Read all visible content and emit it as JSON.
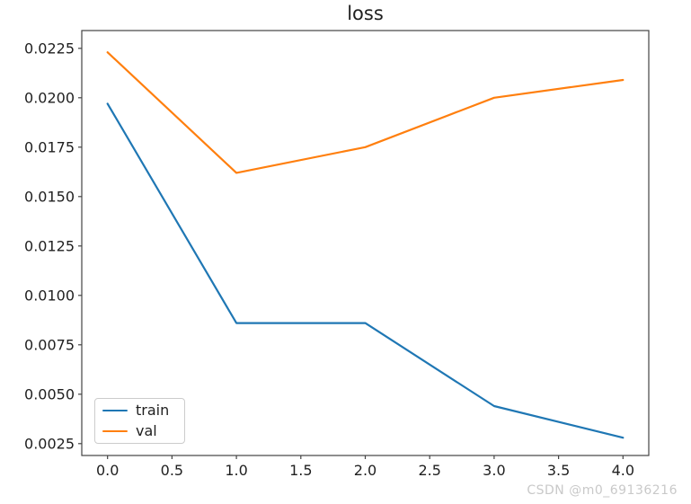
{
  "watermark": "CSDN @m0_69136216",
  "chart_data": {
    "type": "line",
    "title": "loss",
    "xlabel": "",
    "ylabel": "",
    "x": [
      0,
      1,
      2,
      3,
      4
    ],
    "series": [
      {
        "name": "train",
        "color": "#1f77b4",
        "values": [
          0.0197,
          0.0086,
          0.0086,
          0.0044,
          0.0028
        ]
      },
      {
        "name": "val",
        "color": "#ff7f0e",
        "values": [
          0.0223,
          0.0162,
          0.0175,
          0.02,
          0.0209
        ]
      }
    ],
    "xlim": [
      -0.2,
      4.2
    ],
    "ylim": [
      0.0019,
      0.0234
    ],
    "xticks": [
      0.0,
      0.5,
      1.0,
      1.5,
      2.0,
      2.5,
      3.0,
      3.5,
      4.0
    ],
    "xtick_labels": [
      "0.0",
      "0.5",
      "1.0",
      "1.5",
      "2.0",
      "2.5",
      "3.0",
      "3.5",
      "4.0"
    ],
    "yticks": [
      0.0025,
      0.005,
      0.0075,
      0.01,
      0.0125,
      0.015,
      0.0175,
      0.02,
      0.0225
    ],
    "ytick_labels": [
      "0.0025",
      "0.0050",
      "0.0075",
      "0.0100",
      "0.0125",
      "0.0150",
      "0.0175",
      "0.0200",
      "0.0225"
    ],
    "grid": false,
    "legend": {
      "position": "lower-left",
      "entries": [
        "train",
        "val"
      ]
    }
  }
}
